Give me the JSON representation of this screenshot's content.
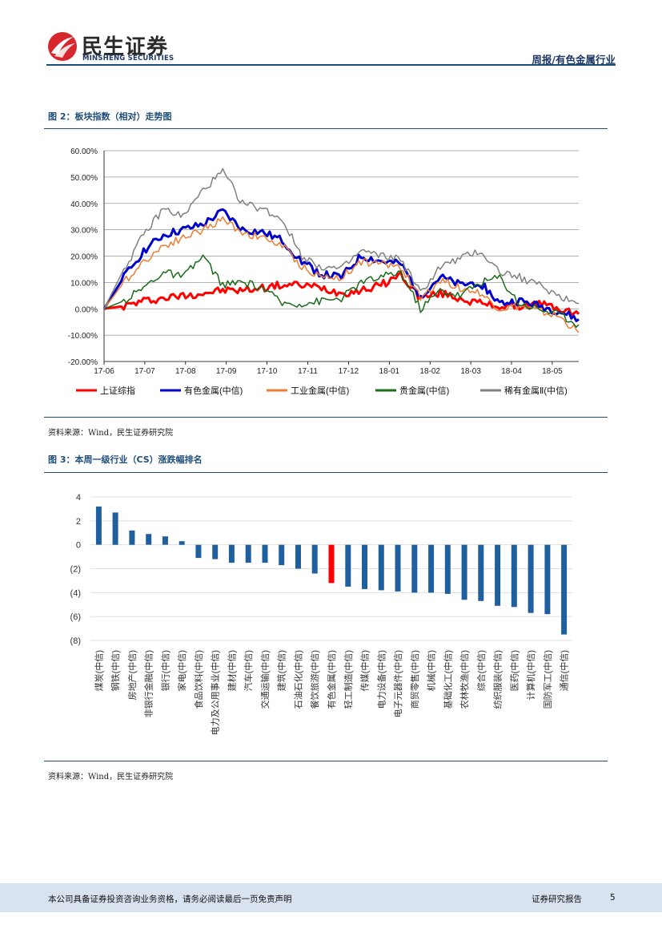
{
  "header": {
    "logo_cn": "民生证券",
    "logo_en": "MINSHENG SECURITIES",
    "title": "周报/有色金属行业"
  },
  "figure2": {
    "title": "图 2：板块指数（相对）走势图",
    "source": "资料来源：Wind，民生证券研究院",
    "chart_data": {
      "type": "line",
      "y_tick_labels": [
        "60.00%",
        "50.00%",
        "40.00%",
        "30.00%",
        "20.00%",
        "10.00%",
        "0.00%",
        "-10.00%",
        "-20.00%"
      ],
      "ylim": [
        -20,
        60
      ],
      "x_tick_labels": [
        "17-06",
        "17-07",
        "17-08",
        "17-09",
        "17-10",
        "17-11",
        "17-12",
        "18-01",
        "18-02",
        "18-03",
        "18-04",
        "18-05"
      ],
      "x": [
        "17-06",
        "17-06b",
        "17-07",
        "17-07b",
        "17-08",
        "17-08b",
        "17-09",
        "17-09b",
        "17-10",
        "17-10b",
        "17-11",
        "17-11b",
        "17-12",
        "17-12b",
        "18-01",
        "18-01b",
        "18-02",
        "18-02b",
        "18-03",
        "18-03b",
        "18-04",
        "18-04b",
        "18-05",
        "18-05b",
        "18-06"
      ],
      "series": [
        {
          "name": "上证综指",
          "color": "#ff0000",
          "width": 3,
          "values": [
            0,
            1,
            3,
            4,
            5,
            6,
            7,
            7,
            8,
            9,
            9,
            8,
            6,
            7,
            9,
            13,
            4,
            6,
            4,
            2,
            1,
            1,
            2,
            0,
            -2
          ]
        },
        {
          "name": "有色金属(中信)",
          "color": "#0000cc",
          "width": 3,
          "values": [
            0,
            12,
            22,
            28,
            30,
            32,
            37,
            30,
            29,
            26,
            18,
            13,
            12,
            20,
            18,
            17,
            5,
            12,
            9,
            10,
            2,
            3,
            1,
            -1,
            -4
          ]
        },
        {
          "name": "工业金属(中信)",
          "color": "#ed7d31",
          "width": 1.5,
          "values": [
            0,
            10,
            18,
            24,
            27,
            30,
            34,
            29,
            27,
            24,
            16,
            12,
            12,
            18,
            17,
            16,
            4,
            11,
            8,
            6,
            0,
            1,
            -1,
            -3,
            -9
          ]
        },
        {
          "name": "贵金属(中信)",
          "color": "#1a6b1a",
          "width": 1.5,
          "values": [
            0,
            3,
            8,
            14,
            12,
            20,
            9,
            10,
            8,
            2,
            2,
            3,
            4,
            10,
            12,
            14,
            0,
            7,
            5,
            10,
            12,
            2,
            0,
            -2,
            -6
          ]
        },
        {
          "name": "稀有金属Ⅱ(中信)",
          "color": "#808080",
          "width": 1.5,
          "values": [
            0,
            15,
            28,
            38,
            35,
            45,
            52,
            40,
            38,
            34,
            20,
            16,
            15,
            22,
            20,
            19,
            6,
            16,
            19,
            22,
            14,
            12,
            9,
            5,
            2
          ]
        }
      ]
    }
  },
  "figure3": {
    "title": "图 3：本周一级行业（CS）涨跌幅排名",
    "source": "资料来源：Wind，民生证券研究院",
    "chart_data": {
      "type": "bar",
      "ylim": [
        -8,
        4
      ],
      "y_tick_labels": [
        "4",
        "2",
        "0",
        "(2)",
        "(4)",
        "(6)",
        "(8)"
      ],
      "categories": [
        "煤炭(中信)",
        "钢铁(中信)",
        "房地产(中信)",
        "非银行金融(中信)",
        "银行(中信)",
        "家电(中信)",
        "食品饮料(中信)",
        "电力及公用事业(中信)",
        "建材(中信)",
        "汽车(中信)",
        "交通运输(中信)",
        "建筑(中信)",
        "石油石化(中信)",
        "餐饮旅游(中信)",
        "有色金属(中信)",
        "轻工制造(中信)",
        "传媒(中信)",
        "电力设备(中信)",
        "电子元器件(中信)",
        "商贸零售(中信)",
        "机械(中信)",
        "基础化工(中信)",
        "农林牧渔(中信)",
        "综合(中信)",
        "纺织服装(中信)",
        "医药(中信)",
        "计算机(中信)",
        "国防军工(中信)",
        "通信(中信)"
      ],
      "values": [
        3.2,
        2.7,
        1.2,
        0.9,
        0.7,
        0.3,
        -1.1,
        -1.2,
        -1.5,
        -1.5,
        -1.5,
        -1.7,
        -2.0,
        -2.4,
        -3.2,
        -3.5,
        -3.7,
        -3.8,
        -3.9,
        -4.0,
        -4.0,
        -4.1,
        -4.6,
        -4.7,
        -5.1,
        -5.2,
        -5.7,
        -5.8,
        -7.5
      ],
      "highlight_index": 14,
      "colors": {
        "default": "#1f5f9e",
        "highlight": "#ff0000"
      }
    }
  },
  "footer": {
    "disclaimer": "本公司具备证券投资咨询业务资格，请务必阅读最后一页免责声明",
    "label": "证券研究报告",
    "page": "5"
  }
}
